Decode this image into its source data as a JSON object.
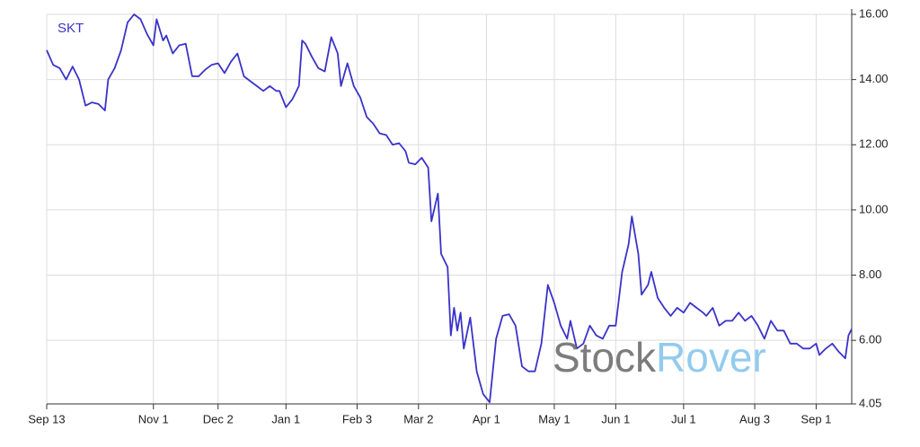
{
  "chart_data": {
    "type": "line",
    "watermark": [
      "Stock",
      "Rover"
    ],
    "xlim": [
      0,
      249
    ],
    "xticks": [
      {
        "value": 0,
        "label": "Sep 13"
      },
      {
        "value": 33,
        "label": "Nov 1"
      },
      {
        "value": 53,
        "label": "Dec 2"
      },
      {
        "value": 74,
        "label": "Jan 1"
      },
      {
        "value": 96,
        "label": "Feb 3"
      },
      {
        "value": 115,
        "label": "Mar 2"
      },
      {
        "value": 136,
        "label": "Apr 1"
      },
      {
        "value": 157,
        "label": "May 1"
      },
      {
        "value": 176,
        "label": "Jun 1"
      },
      {
        "value": 197,
        "label": "Jul 1"
      },
      {
        "value": 219,
        "label": "Aug 3"
      },
      {
        "value": 238,
        "label": "Sep 1"
      }
    ],
    "ylim": [
      4.05,
      16.0
    ],
    "yticks": [
      {
        "value": 4.05,
        "label": "4.05"
      },
      {
        "value": 6,
        "label": "6.00"
      },
      {
        "value": 8,
        "label": "8.00"
      },
      {
        "value": 10,
        "label": "10.00"
      },
      {
        "value": 12,
        "label": "12.00"
      },
      {
        "value": 14,
        "label": "14.00"
      },
      {
        "value": 16,
        "label": "16.00"
      }
    ],
    "grid": true,
    "x": [
      0,
      2,
      4,
      6,
      8,
      10,
      12,
      14,
      16,
      18,
      19,
      21,
      23,
      25,
      27,
      29,
      31,
      33,
      34,
      36,
      37,
      39,
      41,
      43,
      45,
      47,
      49,
      51,
      53,
      55,
      57,
      59,
      61,
      63,
      65,
      67,
      69,
      71,
      72,
      74,
      76,
      78,
      79,
      80,
      82,
      84,
      86,
      88,
      90,
      91,
      93,
      95,
      97,
      99,
      101,
      103,
      105,
      107,
      109,
      111,
      112,
      114,
      116,
      118,
      119,
      121,
      122,
      124,
      125,
      126,
      127,
      128,
      129,
      131,
      133,
      135,
      137,
      139,
      141,
      143,
      145,
      147,
      149,
      151,
      153,
      155,
      157,
      159,
      161,
      162,
      164,
      166,
      168,
      170,
      172,
      174,
      176,
      178,
      180,
      181,
      183,
      184,
      186,
      187,
      189,
      191,
      193,
      195,
      197,
      199,
      201,
      203,
      204,
      206,
      208,
      210,
      212,
      214,
      216,
      218,
      220,
      222,
      224,
      226,
      228,
      230,
      232,
      234,
      236,
      238,
      239,
      241,
      243,
      245,
      247,
      248,
      249
    ],
    "series": [
      {
        "name": "SKT",
        "color": "#3a33c8",
        "values": [
          14.9,
          14.45,
          14.35,
          14.0,
          14.4,
          14.0,
          13.2,
          13.3,
          13.25,
          13.05,
          14.0,
          14.35,
          14.9,
          15.75,
          16.0,
          15.85,
          15.4,
          15.05,
          15.85,
          15.2,
          15.35,
          14.8,
          15.05,
          15.1,
          14.1,
          14.1,
          14.3,
          14.45,
          14.5,
          14.2,
          14.55,
          14.8,
          14.1,
          13.95,
          13.8,
          13.65,
          13.8,
          13.65,
          13.65,
          13.15,
          13.4,
          13.8,
          15.2,
          15.1,
          14.7,
          14.35,
          14.25,
          15.3,
          14.8,
          13.8,
          14.5,
          13.8,
          13.45,
          12.85,
          12.65,
          12.35,
          12.3,
          12.0,
          12.05,
          11.8,
          11.45,
          11.4,
          11.6,
          11.3,
          9.65,
          10.5,
          8.65,
          8.25,
          6.15,
          7.0,
          6.3,
          6.85,
          5.75,
          6.7,
          5.05,
          4.35,
          4.1,
          6.05,
          6.75,
          6.8,
          6.45,
          5.2,
          5.05,
          5.05,
          5.9,
          7.7,
          7.15,
          6.45,
          6.05,
          6.6,
          5.75,
          5.9,
          6.45,
          6.15,
          6.05,
          6.45,
          6.45,
          8.1,
          8.95,
          9.8,
          8.65,
          7.4,
          7.7,
          8.1,
          7.3,
          7.0,
          6.75,
          7.0,
          6.85,
          7.15,
          7.0,
          6.85,
          6.75,
          7.0,
          6.45,
          6.6,
          6.6,
          6.85,
          6.6,
          6.75,
          6.45,
          6.05,
          6.6,
          6.3,
          6.3,
          5.9,
          5.9,
          5.75,
          5.75,
          5.9,
          5.55,
          5.75,
          5.9,
          5.65,
          5.45,
          6.15,
          6.35
        ]
      }
    ]
  }
}
